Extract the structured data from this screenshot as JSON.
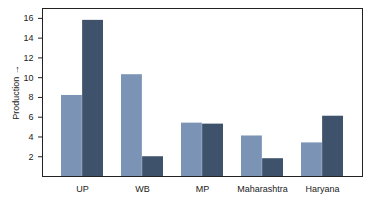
{
  "chart_data": {
    "type": "bar",
    "y_label": "Production →",
    "categories": [
      "UP",
      "WB",
      "MP",
      "Maharashtra",
      "Haryana"
    ],
    "series": [
      {
        "color": "#7b94b6",
        "values": [
          8.2,
          10.3,
          5.4,
          4.1,
          3.4
        ]
      },
      {
        "color": "#3f526b",
        "values": [
          15.8,
          2,
          5.3,
          1.8,
          6.1
        ]
      }
    ],
    "ylim": [
      0,
      17
    ],
    "yticks": [
      2,
      4,
      6,
      8,
      10,
      12,
      14,
      16
    ],
    "grid": false
  }
}
